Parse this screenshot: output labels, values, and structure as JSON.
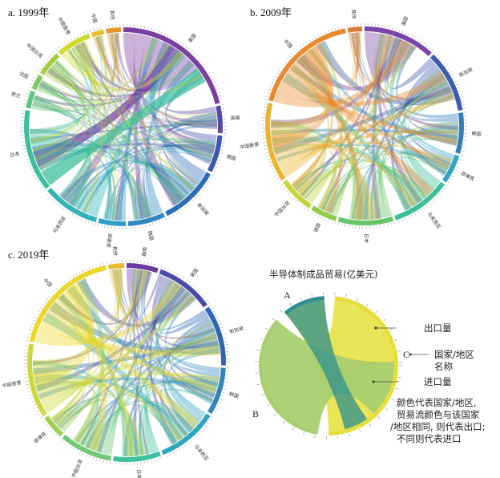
{
  "chart_data": [
    {
      "type": "chord",
      "title": "a. 1999年",
      "segments": [
        {
          "name": "美国",
          "color": "#7b3fa0",
          "value": 520
        },
        {
          "name": "英国",
          "color": "#5a4aa8",
          "value": 110
        },
        {
          "name": "德国",
          "color": "#3b58b0",
          "value": 150
        },
        {
          "name": "新加坡",
          "color": "#2d6fb6",
          "value": 240
        },
        {
          "name": "韩国",
          "color": "#3387c2",
          "value": 150
        },
        {
          "name": "菲律宾",
          "color": "#2ea0c9",
          "value": 110
        },
        {
          "name": "马来西亚",
          "color": "#30b4b8",
          "value": 230
        },
        {
          "name": "日本",
          "color": "#3cbf9c",
          "value": 330
        },
        {
          "name": "荷兰",
          "color": "#5ec67a",
          "value": 70
        },
        {
          "name": "法国",
          "color": "#7bc95c",
          "value": 60
        },
        {
          "name": "中国台湾",
          "color": "#a3cf3f",
          "value": 100
        },
        {
          "name": "中国香港",
          "color": "#d2d92e",
          "value": 140
        },
        {
          "name": "中国",
          "color": "#e8c02a",
          "value": 50
        },
        {
          "name": "其他",
          "color": "#e9962d",
          "value": 60
        }
      ]
    },
    {
      "type": "chord",
      "title": "b. 2009年",
      "segments": [
        {
          "name": "美国",
          "color": "#7a45a8",
          "value": 300
        },
        {
          "name": "新加坡",
          "color": "#3b5cb0",
          "value": 260
        },
        {
          "name": "韩国",
          "color": "#2f7ebc",
          "value": 170
        },
        {
          "name": "菲律宾",
          "color": "#34a3c4",
          "value": 120
        },
        {
          "name": "马来西亚",
          "color": "#3dbf9a",
          "value": 250
        },
        {
          "name": "日本",
          "color": "#67c66a",
          "value": 230
        },
        {
          "name": "德国",
          "color": "#8fcd4a",
          "value": 110
        },
        {
          "name": "中国台湾",
          "color": "#c4d63a",
          "value": 150
        },
        {
          "name": "中国香港",
          "color": "#e8b52c",
          "value": 330
        },
        {
          "name": "中国",
          "color": "#ea8a2f",
          "value": 450
        },
        {
          "name": "其他",
          "color": "#e07a3a",
          "value": 60
        }
      ]
    },
    {
      "type": "chord",
      "title": "c. 2019年",
      "segments": [
        {
          "name": "越南",
          "color": "#6a3aa0",
          "value": 120
        },
        {
          "name": "美国",
          "color": "#4b4ca8",
          "value": 220
        },
        {
          "name": "新加坡",
          "color": "#2f66b4",
          "value": 230
        },
        {
          "name": "韩国",
          "color": "#2f86c0",
          "value": 180
        },
        {
          "name": "马来西亚",
          "color": "#2fa6c0",
          "value": 230
        },
        {
          "name": "日本",
          "color": "#3cc0a0",
          "value": 180
        },
        {
          "name": "中国台湾",
          "color": "#70c878",
          "value": 200
        },
        {
          "name": "菲律宾",
          "color": "#a0d050",
          "value": 90
        },
        {
          "name": "中国香港",
          "color": "#cfd83a",
          "value": 280
        },
        {
          "name": "中国",
          "color": "#ecd72a",
          "value": 420
        },
        {
          "name": "其他",
          "color": "#e9b832",
          "value": 60
        }
      ]
    }
  ],
  "legend": {
    "title": "半导体制成品贸易(亿美元)",
    "label_a": "A",
    "label_b": "B",
    "label_c": "C",
    "export_label": "出口量",
    "country_line1": "国家/地区",
    "country_line2": "名称",
    "import_label": "进口量",
    "note_line1": "颜色代表国家/地区,",
    "note_line2": "贸易流颜色与该国家",
    "note_line3": "/地区相同, 则代表出口;",
    "note_line4": "不同则代表进口",
    "color_a": "#2e8f8f",
    "color_b": "#a8cf6f",
    "color_flow": "#e6df3a"
  }
}
